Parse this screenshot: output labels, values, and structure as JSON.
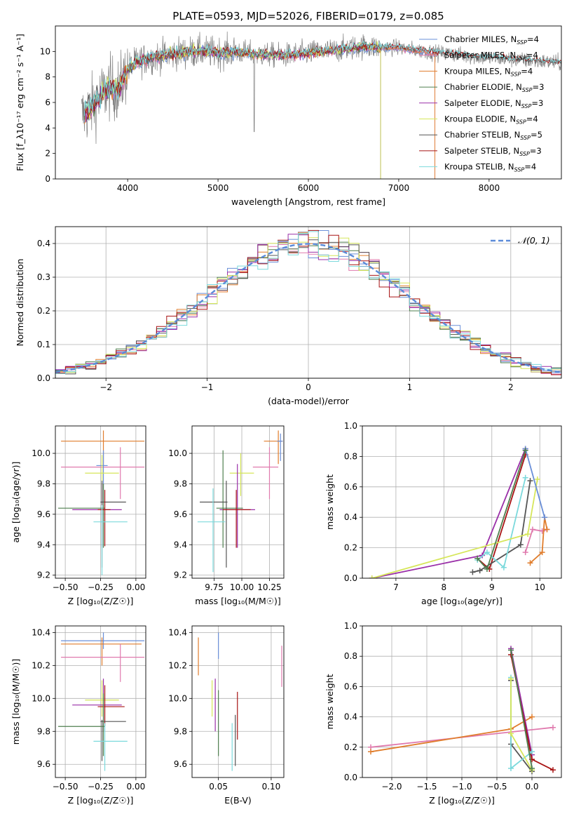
{
  "figure": {
    "title": "PLATE=0593, MJD=52026, FIBERID=0179, z=0.085"
  },
  "colors": {
    "chabrier_miles": "#6a8fd8",
    "salpeter_miles": "#e07aae",
    "kroupa_miles": "#e07d2c",
    "chabrier_elodie": "#4f7f4f",
    "salpeter_elodie": "#9a2fa8",
    "kroupa_elodie": "#d6e65a",
    "chabrier_stelib": "#555555",
    "salpeter_stelib": "#a81414",
    "kroupa_stelib": "#7bd9dc",
    "data": "#808080"
  },
  "chart_data": [
    {
      "id": "spectrum",
      "type": "line",
      "xlabel": "wavelength [Angstrom, rest frame]",
      "ylabel": "Flux [f_λ10⁻¹⁷ erg cm⁻² s⁻¹ A⁻¹]",
      "xlim": [
        3200,
        8800
      ],
      "ylim": [
        0,
        12
      ],
      "xticks": [
        4000,
        5000,
        6000,
        7000,
        8000
      ],
      "yticks": [
        0,
        2,
        4,
        6,
        8,
        10
      ],
      "grid": false,
      "legend_position": "top-right",
      "continuum": {
        "x": [
          3500,
          3600,
          3700,
          3800,
          3900,
          4000,
          4100,
          4200,
          4400,
          4600,
          4800,
          5000,
          5200,
          5400,
          5600,
          5800,
          6000,
          6200,
          6400,
          6600,
          6800,
          7000,
          7200,
          7400,
          7600,
          7800,
          8000,
          8200,
          8400,
          8600,
          8800
        ],
        "y": [
          5.0,
          5.6,
          6.5,
          7.2,
          7.0,
          8.6,
          9.2,
          9.4,
          9.7,
          9.9,
          10.0,
          9.9,
          10.0,
          9.8,
          9.7,
          9.7,
          9.9,
          10.0,
          10.2,
          10.4,
          10.3,
          10.3,
          10.1,
          9.9,
          9.8,
          9.6,
          9.5,
          9.4,
          9.3,
          9.2,
          9.1
        ]
      },
      "series": [
        {
          "name": "Chabrier MILES, N_SSP=4",
          "color_key": "chabrier_miles",
          "x_end": 7400
        },
        {
          "name": "Salpeter MILES, N_SSP=4",
          "color_key": "salpeter_miles",
          "x_end": 7400
        },
        {
          "name": "Kroupa MILES, N_SSP=4",
          "color_key": "kroupa_miles",
          "x_end": 7400
        },
        {
          "name": "Chabrier ELODIE, N_SSP=3",
          "color_key": "chabrier_elodie",
          "x_end": 6800
        },
        {
          "name": "Salpeter ELODIE, N_SSP=3",
          "color_key": "salpeter_elodie",
          "x_end": 6800
        },
        {
          "name": "Kroupa ELODIE, N_SSP=4",
          "color_key": "kroupa_elodie",
          "x_end": 6800
        },
        {
          "name": "Chabrier STELIB, N_SSP=5",
          "color_key": "chabrier_stelib",
          "x_end": 8800
        },
        {
          "name": "Salpeter STELIB, N_SSP=3",
          "color_key": "salpeter_stelib",
          "x_end": 8800
        },
        {
          "name": "Kroupa STELIB, N_SSP=4",
          "color_key": "kroupa_stelib",
          "x_end": 8800
        }
      ]
    },
    {
      "id": "residuals",
      "type": "line",
      "xlabel": "(data-model)/error",
      "ylabel": "Normed distribution",
      "xlim": [
        -2.5,
        2.5
      ],
      "ylim": [
        0,
        0.45
      ],
      "xticks": [
        -2,
        -1,
        0,
        1,
        2
      ],
      "yticks": [
        0.0,
        0.1,
        0.2,
        0.3,
        0.4
      ],
      "grid": true,
      "legend_position": "top-right",
      "gaussian_label": "𝒩(0, 1)",
      "bin_width": 0.1
    },
    {
      "id": "age_vs_Z",
      "type": "scatter",
      "xlabel": "Z [log₁₀(Z/Z☉)]",
      "ylabel": "age  [log₁₀(age/yr)]",
      "xlim": [
        -0.57,
        0.07
      ],
      "ylim": [
        9.18,
        10.18
      ],
      "xticks": [
        -0.5,
        -0.25,
        0.0
      ],
      "xticklabels": [
        "−0.50",
        "−0.25",
        "0.00"
      ],
      "yticks": [
        9.2,
        9.4,
        9.6,
        9.8,
        10.0
      ],
      "grid": true,
      "points": [
        {
          "k": "kroupa_miles",
          "x": -0.23,
          "xl": -0.53,
          "xh": 0.06,
          "y": 10.08,
          "yl": 9.92,
          "yh": 10.15
        },
        {
          "k": "salpeter_miles",
          "x": -0.11,
          "xl": -0.53,
          "xh": 0.06,
          "y": 9.91,
          "yl": 9.7,
          "yh": 10.04
        },
        {
          "k": "chabrier_miles",
          "x": -0.23,
          "xl": -0.28,
          "xh": -0.2,
          "y": 9.92,
          "yl": 9.68,
          "yh": 10.02
        },
        {
          "k": "kroupa_elodie",
          "x": -0.24,
          "xl": -0.36,
          "xh": -0.12,
          "y": 9.87,
          "yl": 9.7,
          "yh": 9.99
        },
        {
          "k": "salpeter_elodie",
          "x": -0.24,
          "xl": -0.45,
          "xh": -0.1,
          "y": 9.63,
          "yl": 9.38,
          "yh": 9.8
        },
        {
          "k": "chabrier_elodie",
          "x": -0.23,
          "xl": -0.55,
          "xh": -0.22,
          "y": 9.64,
          "yl": 9.38,
          "yh": 9.8
        },
        {
          "k": "chabrier_stelib",
          "x": -0.24,
          "xl": -0.25,
          "xh": -0.07,
          "y": 9.68,
          "yl": 9.25,
          "yh": 9.82
        },
        {
          "k": "salpeter_stelib",
          "x": -0.22,
          "xl": -0.27,
          "xh": -0.18,
          "y": 9.63,
          "yl": 9.39,
          "yh": 9.76
        },
        {
          "k": "kroupa_stelib",
          "x": -0.24,
          "xl": -0.3,
          "xh": -0.06,
          "y": 9.55,
          "yl": 9.2,
          "yh": 9.66
        }
      ]
    },
    {
      "id": "age_vs_mass",
      "type": "scatter",
      "xlabel": "mass [log₁₀(M/M☉)]",
      "ylabel": "",
      "xlim": [
        9.55,
        10.38
      ],
      "ylim": [
        9.18,
        10.18
      ],
      "xticks": [
        9.75,
        10.0,
        10.25
      ],
      "xticklabels": [
        "9.75",
        "10.00",
        "10.25"
      ],
      "yticks": [
        9.2,
        9.4,
        9.6,
        9.8,
        10.0
      ],
      "grid": true,
      "points": [
        {
          "k": "kroupa_miles",
          "x": 10.33,
          "xl": 10.2,
          "xh": 10.37,
          "y": 10.08,
          "yl": 9.93,
          "yh": 10.15
        },
        {
          "k": "chabrier_miles",
          "x": 10.35,
          "xl": 10.32,
          "xh": 10.37,
          "y": 10.08,
          "yl": 9.95,
          "yh": 10.13
        },
        {
          "k": "salpeter_miles",
          "x": 10.25,
          "xl": 10.1,
          "xh": 10.33,
          "y": 9.91,
          "yl": 9.7,
          "yh": 10.04
        },
        {
          "k": "kroupa_elodie",
          "x": 9.99,
          "xl": 9.89,
          "xh": 10.11,
          "y": 9.87,
          "yl": 9.72,
          "yh": 10.0
        },
        {
          "k": "salpeter_elodie",
          "x": 9.96,
          "xl": 9.8,
          "xh": 10.12,
          "y": 9.63,
          "yl": 9.38,
          "yh": 9.93
        },
        {
          "k": "chabrier_elodie",
          "x": 9.83,
          "xl": 9.77,
          "xh": 10.01,
          "y": 9.64,
          "yl": 9.38,
          "yh": 10.02
        },
        {
          "k": "chabrier_stelib",
          "x": 9.86,
          "xl": 9.62,
          "xh": 9.87,
          "y": 9.68,
          "yl": 9.25,
          "yh": 9.82
        },
        {
          "k": "salpeter_stelib",
          "x": 9.95,
          "xl": 9.83,
          "xh": 10.08,
          "y": 9.63,
          "yl": 9.38,
          "yh": 9.76
        },
        {
          "k": "kroupa_stelib",
          "x": 9.74,
          "xl": 9.6,
          "xh": 9.85,
          "y": 9.55,
          "yl": 9.22,
          "yh": 9.77
        }
      ]
    },
    {
      "id": "mw_vs_age",
      "type": "line",
      "xlabel": "age  [log₁₀(age/yr)]",
      "ylabel": "mass weight",
      "xlim": [
        6.3,
        10.45
      ],
      "ylim": [
        0,
        1
      ],
      "xticks": [
        7,
        8,
        9,
        10
      ],
      "yticks": [
        0.0,
        0.2,
        0.4,
        0.6,
        0.8,
        1.0
      ],
      "grid": true,
      "series": [
        {
          "k": "salpeter_elodie",
          "x": [
            6.5,
            8.8,
            9.7
          ],
          "y": [
            0.0,
            0.15,
            0.85
          ]
        },
        {
          "k": "salpeter_stelib",
          "x": [
            8.7,
            8.95,
            9.7
          ],
          "y": [
            0.13,
            0.06,
            0.81
          ]
        },
        {
          "k": "chabrier_stelib",
          "x": [
            8.6,
            8.75,
            9.6,
            9.8
          ],
          "y": [
            0.04,
            0.05,
            0.22,
            0.64
          ]
        },
        {
          "k": "kroupa_stelib",
          "x": [
            8.7,
            8.9,
            9.25,
            9.7
          ],
          "y": [
            0.12,
            0.17,
            0.07,
            0.66
          ]
        },
        {
          "k": "kroupa_elodie",
          "x": [
            6.5,
            9.75,
            9.95
          ],
          "y": [
            0.0,
            0.29,
            0.65
          ]
        },
        {
          "k": "salpeter_miles",
          "x": [
            9.7,
            9.85,
            10.05,
            10.15
          ],
          "y": [
            0.17,
            0.32,
            0.31,
            0.32
          ]
        },
        {
          "k": "kroupa_miles",
          "x": [
            9.8,
            10.05,
            10.1,
            10.15
          ],
          "y": [
            0.1,
            0.17,
            0.4,
            0.32
          ]
        },
        {
          "k": "chabrier_miles",
          "x": [
            9.7,
            10.1
          ],
          "y": [
            0.85,
            0.4
          ]
        },
        {
          "k": "chabrier_elodie",
          "x": [
            8.7,
            8.9,
            9.7
          ],
          "y": [
            0.13,
            0.06,
            0.84
          ]
        }
      ]
    },
    {
      "id": "mass_vs_Z",
      "type": "scatter",
      "xlabel": "Z [log₁₀(Z/Z☉)]",
      "ylabel": "mass [log₁₀(M/M☉)]",
      "xlim": [
        -0.57,
        0.07
      ],
      "ylim": [
        9.52,
        10.44
      ],
      "xticks": [
        -0.5,
        -0.25,
        0.0
      ],
      "xticklabels": [
        "−0.50",
        "−0.25",
        "0.00"
      ],
      "yticks": [
        9.6,
        9.8,
        10.0,
        10.2,
        10.4
      ],
      "grid": true,
      "points": [
        {
          "k": "chabrier_miles",
          "x": -0.23,
          "xl": -0.53,
          "xh": 0.06,
          "y": 10.35,
          "yl": 10.3,
          "yh": 10.4
        },
        {
          "k": "kroupa_miles",
          "x": -0.24,
          "xl": -0.53,
          "xh": 0.04,
          "y": 10.33,
          "yl": 10.2,
          "yh": 10.37
        },
        {
          "k": "salpeter_miles",
          "x": -0.11,
          "xl": -0.53,
          "xh": 0.06,
          "y": 10.25,
          "yl": 10.1,
          "yh": 10.33
        },
        {
          "k": "kroupa_elodie",
          "x": -0.24,
          "xl": -0.36,
          "xh": -0.12,
          "y": 9.99,
          "yl": 9.89,
          "yh": 10.11
        },
        {
          "k": "salpeter_elodie",
          "x": -0.23,
          "xl": -0.45,
          "xh": -0.1,
          "y": 9.96,
          "yl": 9.8,
          "yh": 10.12
        },
        {
          "k": "salpeter_stelib",
          "x": -0.22,
          "xl": -0.27,
          "xh": -0.08,
          "y": 9.95,
          "yl": 9.83,
          "yh": 10.08
        },
        {
          "k": "chabrier_stelib",
          "x": -0.24,
          "xl": -0.25,
          "xh": -0.07,
          "y": 9.86,
          "yl": 9.62,
          "yh": 9.87
        },
        {
          "k": "chabrier_elodie",
          "x": -0.23,
          "xl": -0.55,
          "xh": -0.22,
          "y": 9.83,
          "yl": 9.65,
          "yh": 10.03
        },
        {
          "k": "kroupa_stelib",
          "x": -0.22,
          "xl": -0.3,
          "xh": -0.06,
          "y": 9.74,
          "yl": 9.56,
          "yh": 9.85
        }
      ]
    },
    {
      "id": "mass_vs_ebv",
      "type": "scatter",
      "xlabel": "E(B-V)",
      "ylabel": "",
      "xlim": [
        0.025,
        0.112
      ],
      "ylim": [
        9.52,
        10.44
      ],
      "xticks": [
        0.05,
        0.1
      ],
      "xticklabels": [
        "0.05",
        "0.10"
      ],
      "yticks": [
        9.6,
        9.8,
        10.0,
        10.2,
        10.4
      ],
      "grid": true,
      "points": [
        {
          "k": "kroupa_miles",
          "x": 0.031,
          "xl": 0.031,
          "xh": 0.031,
          "y": 10.25,
          "yl": 10.14,
          "yh": 10.37
        },
        {
          "k": "chabrier_miles",
          "x": 0.05,
          "xl": 0.05,
          "xh": 0.05,
          "y": 10.35,
          "yl": 10.24,
          "yh": 10.4
        },
        {
          "k": "salpeter_miles",
          "x": 0.11,
          "xl": 0.11,
          "xh": 0.11,
          "y": 10.25,
          "yl": 10.07,
          "yh": 10.32
        },
        {
          "k": "kroupa_elodie",
          "x": 0.044,
          "xl": 0.044,
          "xh": 0.044,
          "y": 9.99,
          "yl": 9.89,
          "yh": 10.11
        },
        {
          "k": "salpeter_elodie",
          "x": 0.047,
          "xl": 0.047,
          "xh": 0.047,
          "y": 9.96,
          "yl": 9.8,
          "yh": 10.12
        },
        {
          "k": "chabrier_elodie",
          "x": 0.05,
          "xl": 0.05,
          "xh": 0.05,
          "y": 9.83,
          "yl": 9.65,
          "yh": 10.05
        },
        {
          "k": "kroupa_stelib",
          "x": 0.063,
          "xl": 0.063,
          "xh": 0.063,
          "y": 9.74,
          "yl": 9.56,
          "yh": 9.85
        },
        {
          "k": "chabrier_stelib",
          "x": 0.066,
          "xl": 0.066,
          "xh": 0.066,
          "y": 9.8,
          "yl": 9.59,
          "yh": 9.9
        },
        {
          "k": "salpeter_stelib",
          "x": 0.068,
          "xl": 0.068,
          "xh": 0.068,
          "y": 9.95,
          "yl": 9.75,
          "yh": 10.04
        }
      ]
    },
    {
      "id": "mw_vs_Z",
      "type": "line",
      "xlabel": "Z [log₁₀(Z/Z☉)]",
      "ylabel": "mass weight",
      "xlim": [
        -2.42,
        0.42
      ],
      "ylim": [
        0,
        1
      ],
      "xticks": [
        -2.0,
        -1.5,
        -1.0,
        -0.5,
        0.0
      ],
      "xticklabels": [
        "−2.0",
        "−1.5",
        "−1.0",
        "−0.5",
        "0.0"
      ],
      "yticks": [
        0.0,
        0.2,
        0.4,
        0.6,
        0.8,
        1.0
      ],
      "grid": true,
      "series": [
        {
          "k": "salpeter_miles",
          "x": [
            -2.3,
            0.3
          ],
          "y": [
            0.2,
            0.33
          ]
        },
        {
          "k": "kroupa_miles",
          "x": [
            -2.3,
            -0.3,
            0.0
          ],
          "y": [
            0.17,
            0.32,
            0.4
          ]
        },
        {
          "k": "salpeter_elodie",
          "x": [
            -0.3,
            0.0
          ],
          "y": [
            0.85,
            0.15
          ]
        },
        {
          "k": "salpeter_stelib",
          "x": [
            -0.3,
            0.0,
            0.3
          ],
          "y": [
            0.81,
            0.12,
            0.05
          ]
        },
        {
          "k": "chabrier_stelib",
          "x": [
            -0.3,
            -0.3,
            0.0
          ],
          "y": [
            0.64,
            0.22,
            0.04
          ]
        },
        {
          "k": "kroupa_stelib",
          "x": [
            -0.3,
            -0.3,
            0.0
          ],
          "y": [
            0.66,
            0.06,
            0.17
          ]
        },
        {
          "k": "kroupa_elodie",
          "x": [
            -0.3,
            -0.3,
            0.0
          ],
          "y": [
            0.65,
            0.29,
            0.05
          ]
        },
        {
          "k": "chabrier_elodie",
          "x": [
            -0.3,
            0.0
          ],
          "y": [
            0.84,
            0.06
          ]
        }
      ]
    }
  ]
}
